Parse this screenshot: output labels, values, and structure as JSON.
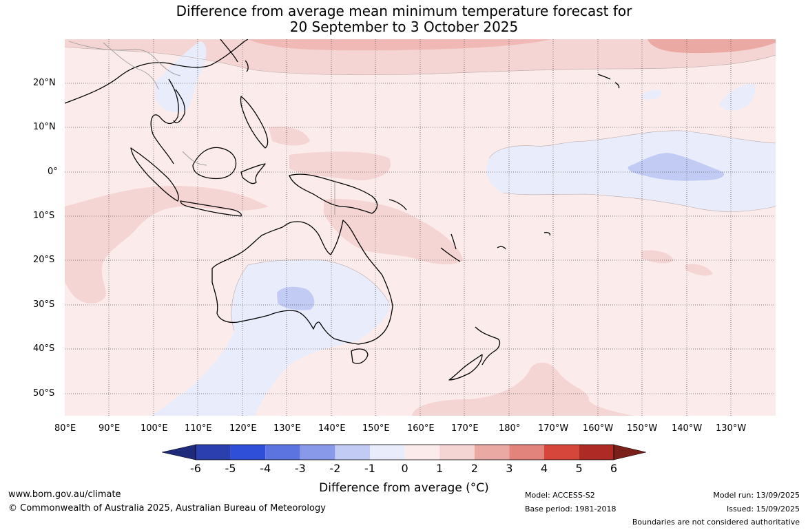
{
  "title": {
    "line1": "Difference from average mean minimum temperature forecast for",
    "line2": "20 September to 3 October 2025"
  },
  "axes": {
    "longitude_labels": [
      "80°E",
      "90°E",
      "100°E",
      "110°E",
      "120°E",
      "130°E",
      "140°E",
      "150°E",
      "160°E",
      "170°E",
      "180°",
      "170°W",
      "160°W",
      "150°W",
      "140°W",
      "130°W"
    ],
    "latitude_labels": [
      "20°N",
      "10°N",
      "0°",
      "10°S",
      "20°S",
      "30°S",
      "40°S",
      "50°S"
    ],
    "longitude_range": [
      80,
      240
    ],
    "latitude_range": [
      -55,
      30
    ]
  },
  "colorbar": {
    "ticks": [
      "-6",
      "-5",
      "-4",
      "-3",
      "-2",
      "-1",
      "0",
      "1",
      "2",
      "3",
      "4",
      "5",
      "6"
    ],
    "colors": [
      "#1f2a7a",
      "#2c3fae",
      "#2f4fd9",
      "#5b74e0",
      "#8799e8",
      "#c2cbf3",
      "#e8ecfb",
      "#fbeceb",
      "#f5d5d3",
      "#eaa9a3",
      "#e2847c",
      "#d6463a",
      "#ad2b24",
      "#7a1f1a"
    ],
    "label": "Difference from average (°C)"
  },
  "colors": {
    "near_zero_warm": "#fbeceb",
    "warm_1_2": "#f5d5d3",
    "warm_2_3": "#eaa9a3",
    "near_zero_cool": "#e8ecfb",
    "cool_1_2": "#c2cbf3"
  },
  "footer": {
    "url": "www.bom.gov.au/climate",
    "copyright": "© Commonwealth of Australia 2025, Australian Bureau of Meteorology",
    "model": "Model: ACCESS-S2",
    "base_period": "Base period: 1981-2018",
    "model_run": "Model run: 13/09/2025",
    "issued": "Issued: 15/09/2025",
    "disclaimer": "Boundaries are not considered authoritative"
  }
}
